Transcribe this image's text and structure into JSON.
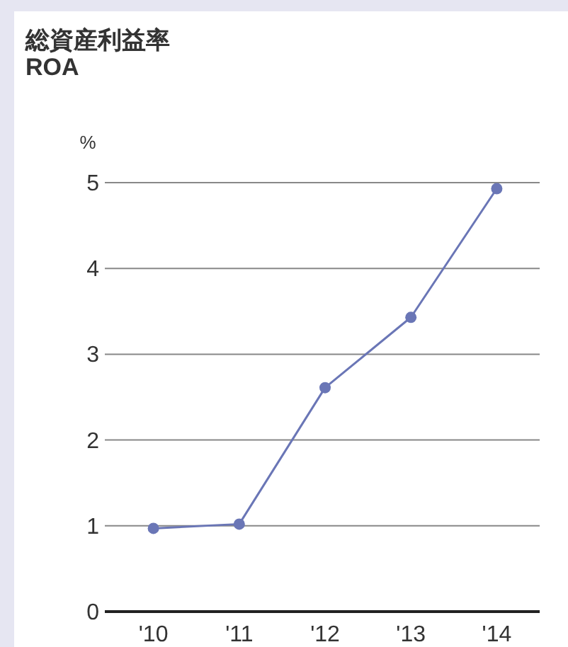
{
  "chart_data": {
    "type": "line",
    "title": "総資産利益率",
    "subtitle": "ROA",
    "ylabel": "%",
    "categories": [
      "'10",
      "'11",
      "'12",
      "'13",
      "'14"
    ],
    "series": [
      {
        "color": "#6a76b6",
        "values": [
          0.97,
          1.02,
          2.61,
          3.43,
          4.93
        ]
      }
    ],
    "ylim": [
      0,
      5
    ],
    "yticks": [
      0,
      1,
      2,
      3,
      4,
      5
    ],
    "grid": "y",
    "marker": "circle"
  }
}
